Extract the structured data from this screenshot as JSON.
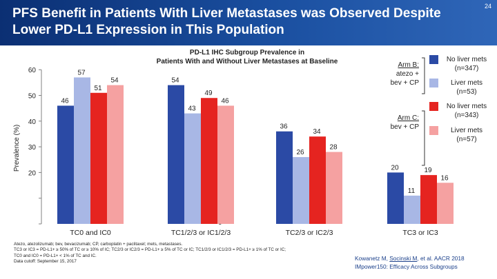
{
  "header": {
    "title": "PFS Benefit in Patients With Liver Metastases was Observed Despite Lower PD-L1 Expression in This Population",
    "slide_number": "24"
  },
  "colors": {
    "banner": "#0b2f73",
    "arm_b_no_liver": "#2b4aa5",
    "arm_b_liver": "#a8b7e5",
    "arm_c_no_liver": "#e52420",
    "arm_c_liver": "#f5a1a1"
  },
  "chart_data": {
    "type": "bar",
    "title": "PD-L1 IHC Subgroup Prevalence in Patients With and Without Liver Metastases at Baseline",
    "title_lines": [
      "PD-L1 IHC Subgroup Prevalence in",
      "Patients With and Without Liver Metastases at Baseline"
    ],
    "xlabel": "",
    "ylabel": "Prevalence (%)",
    "ylim": [
      0,
      60
    ],
    "yticks": [
      "60",
      "50",
      "40",
      "30",
      "20",
      "10",
      "0"
    ],
    "ytick_values": [
      60,
      50,
      40,
      30,
      20,
      10,
      0
    ],
    "grid": false,
    "categories": [
      "TC0 and IC0",
      "TC1/2/3 or IC1/2/3",
      "TC2/3 or IC2/3",
      "TC3 or IC3"
    ],
    "series": [
      {
        "name": "Arm B: No liver mets (n=347)",
        "values": [
          46,
          54,
          36,
          20
        ]
      },
      {
        "name": "Arm B: Liver mets (n=53)",
        "values": [
          57,
          43,
          26,
          11
        ]
      },
      {
        "name": "Arm C: No liver mets (n=343)",
        "values": [
          51,
          49,
          34,
          19
        ]
      },
      {
        "name": "Arm C: Liver mets (n=57)",
        "values": [
          54,
          46,
          28,
          16
        ]
      }
    ],
    "legend": {
      "placement": "top-right",
      "arm_b_label": [
        "Arm B:",
        "atezo +",
        "bev + CP"
      ],
      "arm_c_label": [
        "Arm C:",
        "bev + CP"
      ],
      "arm_b_items": [
        {
          "line1": "No liver mets",
          "line2": "(n=347)"
        },
        {
          "line1": "Liver mets",
          "line2": "(n=53)"
        }
      ],
      "arm_c_items": [
        {
          "line1": "No liver mets",
          "line2": "(n=343)"
        },
        {
          "line1": "Liver mets",
          "line2": "(n=57)"
        }
      ]
    }
  },
  "footnote": {
    "left_lines": [
      "Atezo, atezolizumab; bev, bevacizumab; CP, carboplatin + paclitaxel; mets, metastases.",
      "TC3 or IC3 = PD-L1+ ≥ 50% of TC or ≥ 10% of IC; TC2/3 or IC2/3 = PD-L1+ ≥ 5% of TC or IC; TC1/2/3 or IC1/2/3 = PD-L1+ ≥ 1% of TC or IC;",
      "TC0 and IC0 = PD-L1+ < 1% of TC and IC.",
      "Data cutoff: September 15, 2017"
    ],
    "citation_line1_prefix": "Kowanetz M, ",
    "citation_line1_underlined": "Socinski M",
    "citation_line1_suffix": ", et al. AACR 2018",
    "citation_line2": "IMpower150: Efficacy Across Subgroups"
  }
}
